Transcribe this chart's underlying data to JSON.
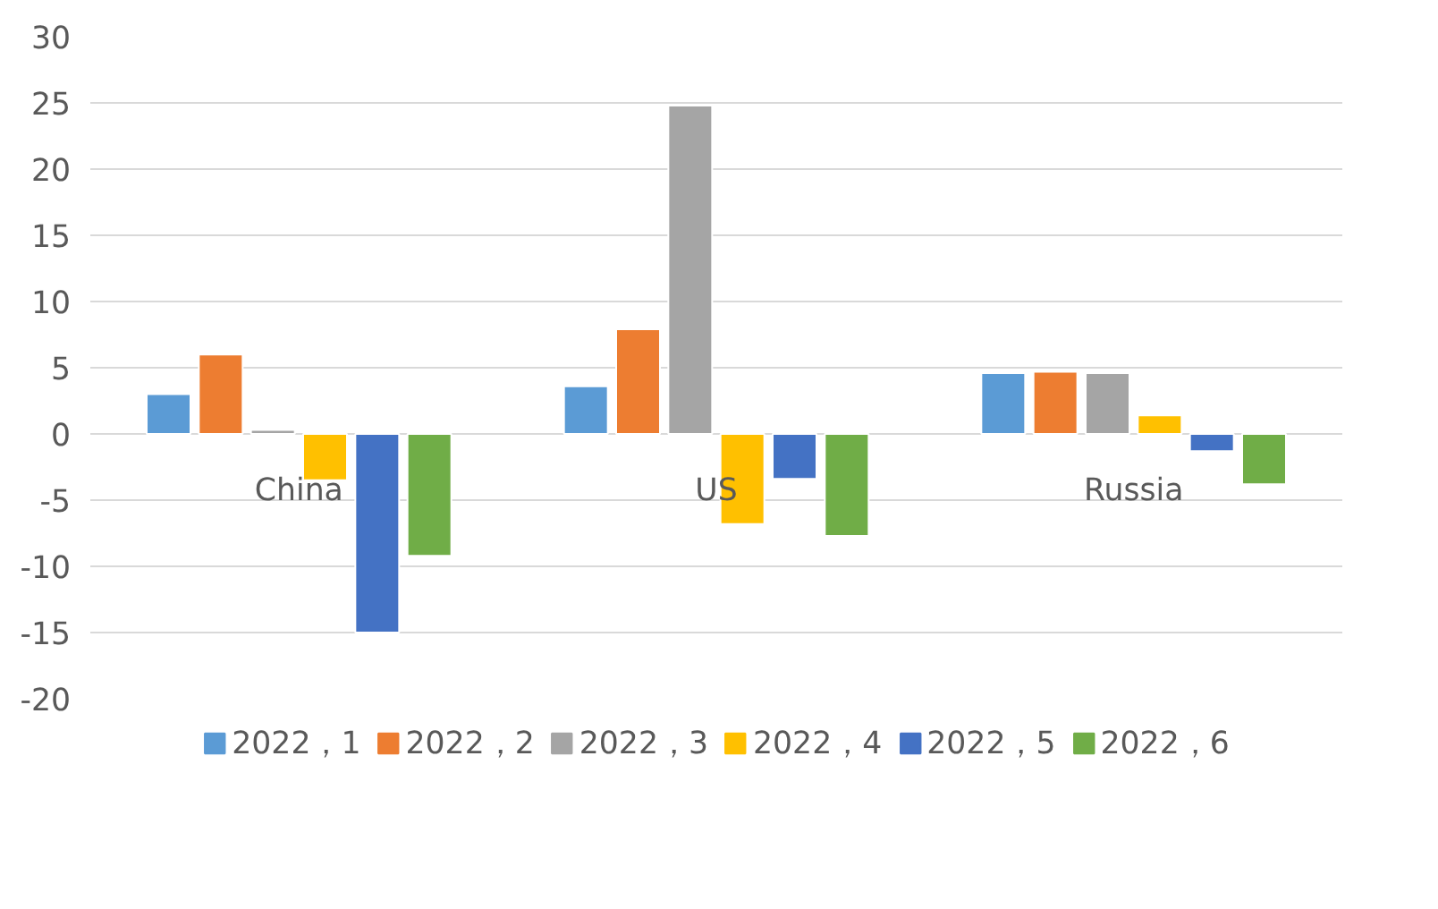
{
  "chart_data": {
    "type": "bar",
    "categories": [
      "China",
      "US",
      "Russia"
    ],
    "series": [
      {
        "name": "2022，1",
        "color": "#5b9bd5",
        "values": [
          3.0,
          3.6,
          4.6
        ]
      },
      {
        "name": "2022，2",
        "color": "#ed7d31",
        "values": [
          6.0,
          7.9,
          4.7
        ]
      },
      {
        "name": "2022，3",
        "color": "#a5a5a5",
        "values": [
          0.3,
          24.8,
          4.6
        ]
      },
      {
        "name": "2022，4",
        "color": "#ffc000",
        "values": [
          -3.5,
          -6.8,
          1.4
        ]
      },
      {
        "name": "2022，5",
        "color": "#4472c4",
        "values": [
          -15.0,
          -3.4,
          -1.3
        ]
      },
      {
        "name": "2022，6",
        "color": "#70ad47",
        "values": [
          -9.2,
          -7.7,
          -3.8
        ]
      }
    ],
    "ylim": [
      -20,
      30
    ],
    "yticks": [
      -20,
      -15,
      -10,
      -5,
      0,
      5,
      10,
      15,
      20,
      25,
      30
    ],
    "grid": "y",
    "legend": "bottom"
  }
}
